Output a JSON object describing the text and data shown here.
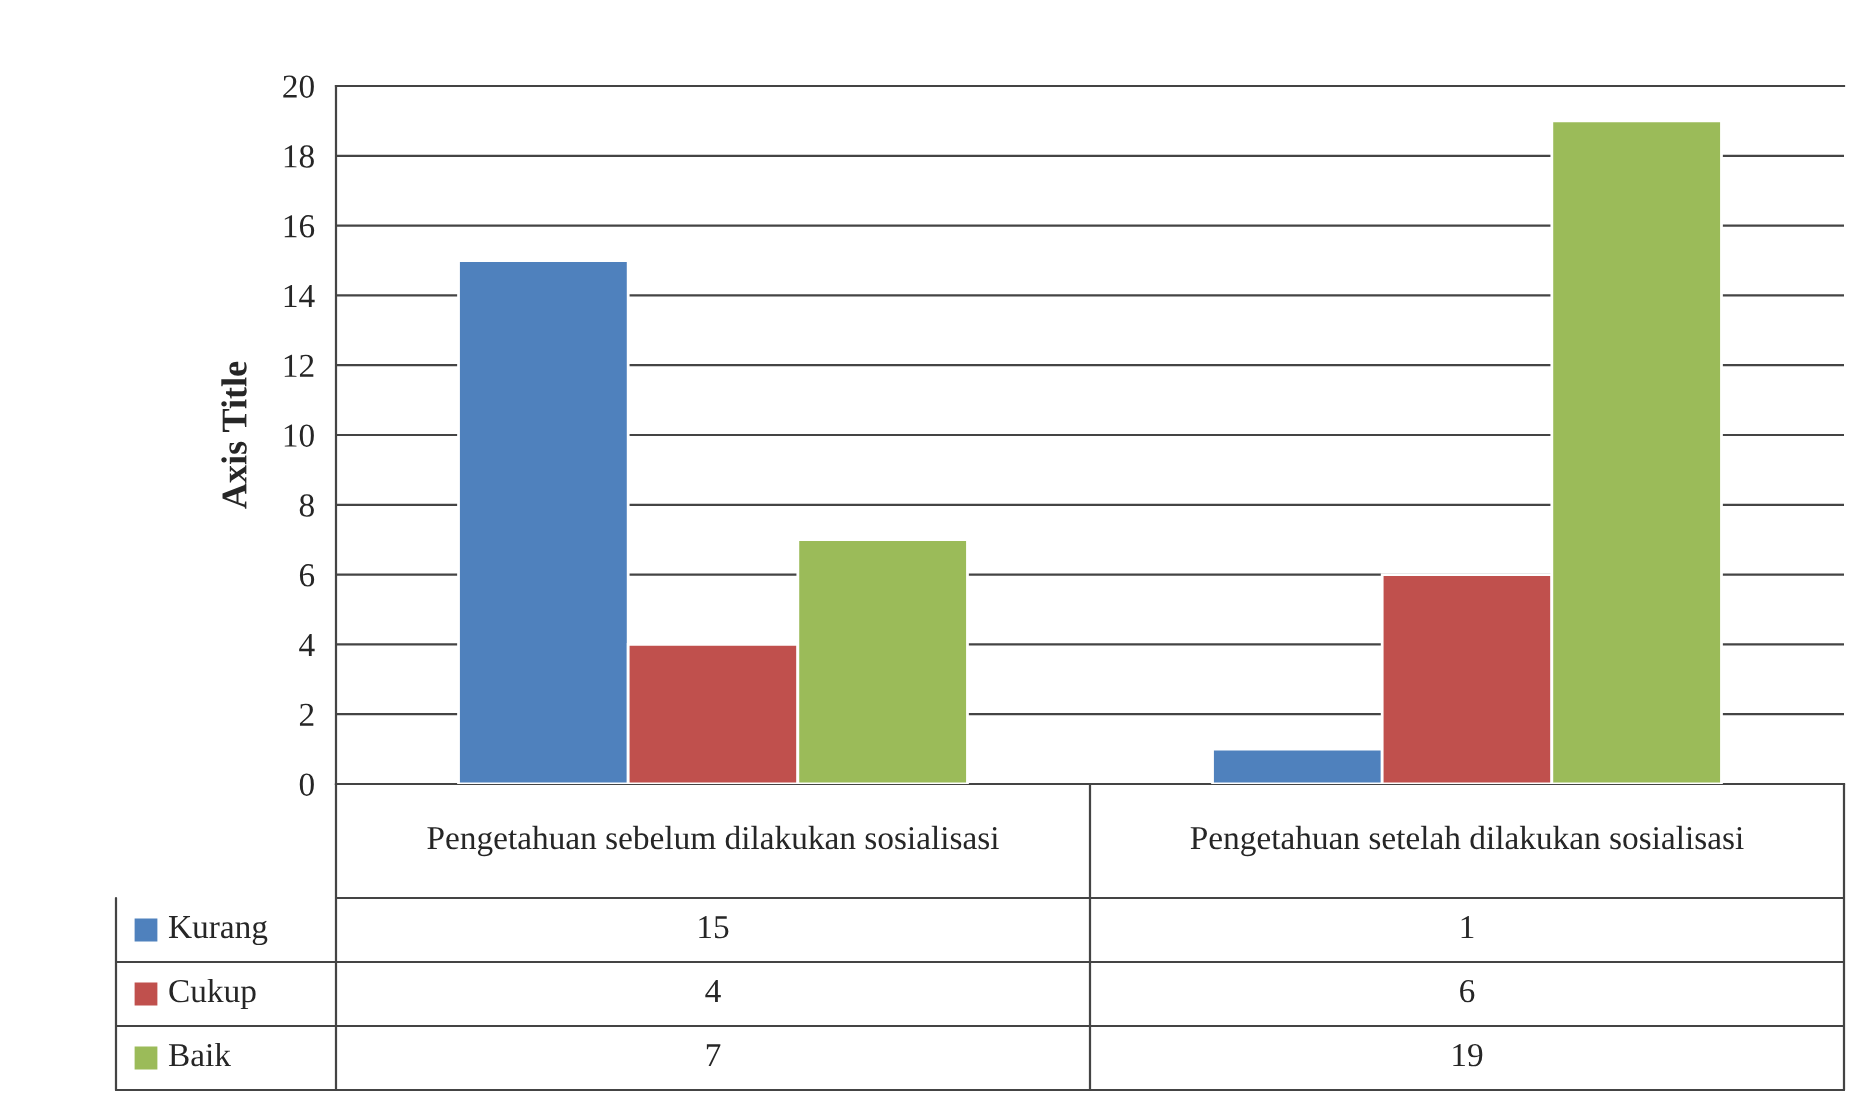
{
  "chart_data": {
    "type": "bar",
    "ylabel": "Axis Title",
    "categories": [
      "Pengetahuan sebelum dilakukan sosialisasi",
      "Pengetahuan setelah dilakukan sosialisasi"
    ],
    "series": [
      {
        "name": "Kurang",
        "color": "#4f81bd",
        "values": [
          15,
          1
        ]
      },
      {
        "name": "Cukup",
        "color": "#c0504d",
        "values": [
          4,
          6
        ]
      },
      {
        "name": "Baik",
        "color": "#9bbb59",
        "values": [
          7,
          19
        ]
      }
    ],
    "ylim": [
      0,
      20
    ],
    "yticks": [
      0,
      2,
      4,
      6,
      8,
      10,
      12,
      14,
      16,
      18,
      20
    ],
    "grid": "y",
    "legend": "bottom",
    "data_labels": true
  }
}
